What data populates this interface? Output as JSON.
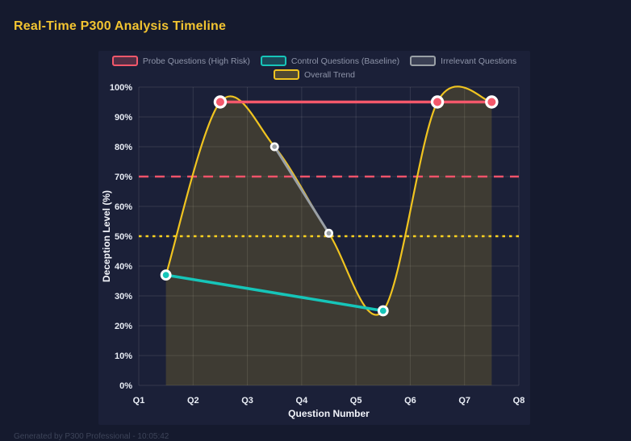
{
  "page": {
    "title": "Real-Time P300 Analysis Timeline",
    "footer": "Generated by P300 Professional - 10:05:42"
  },
  "colors": {
    "background": "#151a2e",
    "panel": "#1b2038",
    "title": "#f2c431",
    "grid": "rgba(255,255,255,0.11)",
    "tick_label": "#e9edf5",
    "legend_label": "#8e94a9",
    "footer": "#3d4459"
  },
  "chart_data": {
    "type": "line",
    "title": "Real-Time P300 Analysis Timeline",
    "xlabel": "Question Number",
    "ylabel": "Deception Level (%)",
    "x_ticks": [
      "Q1",
      "Q2",
      "Q3",
      "Q4",
      "Q5",
      "Q6",
      "Q7",
      "Q8"
    ],
    "y_ticks": [
      "0%",
      "10%",
      "20%",
      "30%",
      "40%",
      "50%",
      "60%",
      "70%",
      "80%",
      "90%",
      "100%"
    ],
    "xlim": [
      1,
      8
    ],
    "ylim": [
      0,
      100
    ],
    "grid": true,
    "legend_position": "top-center",
    "series": [
      {
        "name": "Probe Questions (High Risk)",
        "color": "#f4586b",
        "style": "solid",
        "points": [
          [
            2.5,
            95
          ],
          [
            6.5,
            95
          ],
          [
            7.5,
            95
          ]
        ]
      },
      {
        "name": "Control Questions (Baseline)",
        "color": "#16c5b9",
        "style": "solid",
        "points": [
          [
            1.5,
            37
          ],
          [
            5.5,
            25
          ]
        ]
      },
      {
        "name": "Irrelevant Questions",
        "color": "#9aa0a6",
        "style": "solid",
        "points": [
          [
            3.5,
            80
          ],
          [
            4.5,
            51
          ]
        ]
      },
      {
        "name": "Overall Trend",
        "color": "#f0c420",
        "style": "smooth",
        "area": true,
        "area_color": "rgba(240,196,32,0.17)",
        "points": [
          [
            1.5,
            37
          ],
          [
            2.5,
            95
          ],
          [
            3.5,
            80
          ],
          [
            4.5,
            51
          ],
          [
            5.5,
            25
          ],
          [
            6.5,
            95
          ],
          [
            7.5,
            95
          ]
        ]
      }
    ],
    "thresholds": [
      {
        "y": 70,
        "color": "#f0536a",
        "style": "dashed"
      },
      {
        "y": 50,
        "color": "#ffd21f",
        "style": "dotted"
      }
    ],
    "legend_rows": [
      [
        0,
        1,
        2
      ],
      [
        3
      ]
    ]
  }
}
